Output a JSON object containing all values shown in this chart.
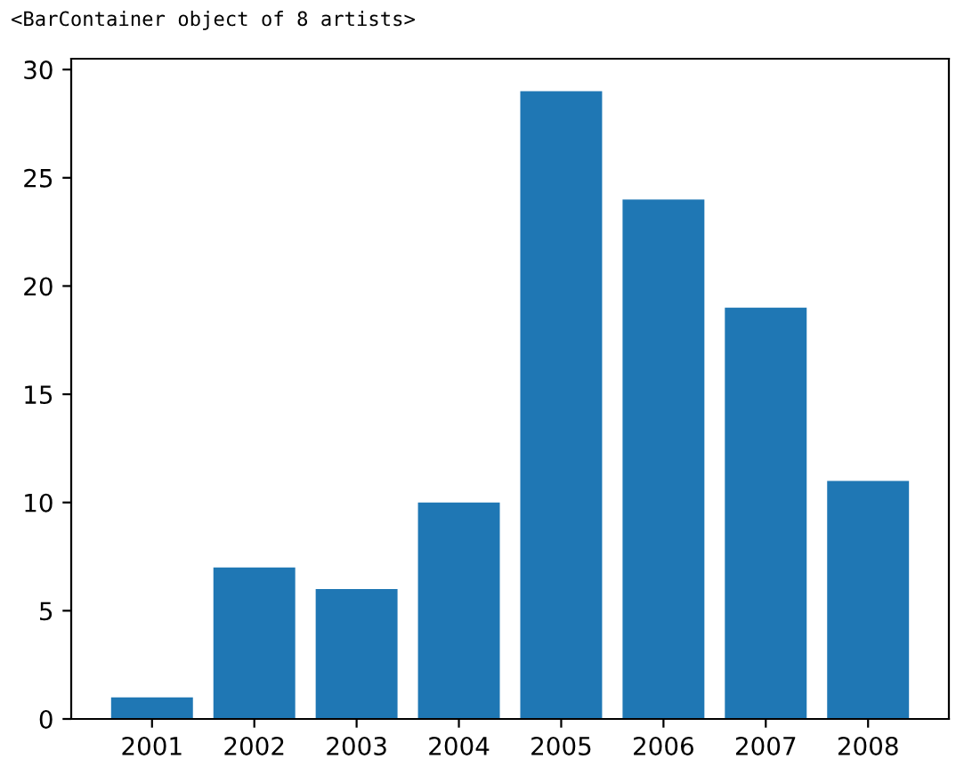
{
  "chart_data": {
    "type": "bar",
    "categories": [
      "2001",
      "2002",
      "2003",
      "2004",
      "2005",
      "2006",
      "2007",
      "2008"
    ],
    "values": [
      1,
      7,
      6,
      10,
      29,
      24,
      19,
      11
    ],
    "color": "#1f77b4",
    "ylim": [
      0,
      30.5
    ],
    "yticks": [
      0,
      5,
      10,
      15,
      20,
      25,
      30
    ],
    "grid": false,
    "legend": false,
    "annotations": [
      "<BarContainer object of 8 artists>"
    ]
  }
}
